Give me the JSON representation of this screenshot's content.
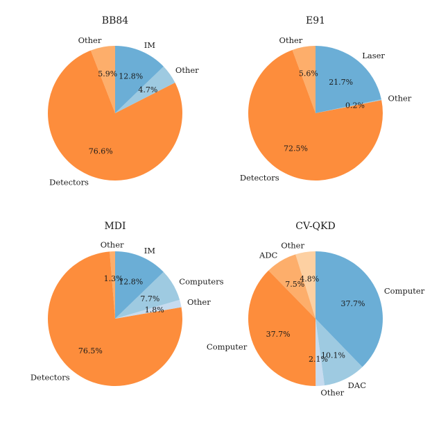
{
  "chart_data": [
    {
      "type": "pie",
      "title": "BB84",
      "slices": [
        {
          "label": "Other",
          "value": 5.9,
          "pct_text": "5.9%",
          "color": "#fdae6b"
        },
        {
          "label": "Detectors",
          "value": 76.6,
          "pct_text": "76.6%",
          "color": "#fd8d3c"
        },
        {
          "label": "Other",
          "value": 4.7,
          "pct_text": "4.7%",
          "color": "#9ecae1"
        },
        {
          "label": "IM",
          "value": 12.8,
          "pct_text": "12.8%",
          "color": "#6baed6"
        }
      ]
    },
    {
      "type": "pie",
      "title": "E91",
      "slices": [
        {
          "label": "Other",
          "value": 5.6,
          "pct_text": "5.6%",
          "color": "#fdae6b"
        },
        {
          "label": "Detectors",
          "value": 72.5,
          "pct_text": "72.5%",
          "color": "#fd8d3c"
        },
        {
          "label": "Other",
          "value": 0.2,
          "pct_text": "0.2%",
          "color": "#9ecae1"
        },
        {
          "label": "Laser",
          "value": 21.7,
          "pct_text": "21.7%",
          "color": "#6baed6"
        }
      ]
    },
    {
      "type": "pie",
      "title": "MDI",
      "slices": [
        {
          "label": "Other",
          "value": 1.3,
          "pct_text": "1.3%",
          "color": "#fdae6b"
        },
        {
          "label": "Detectors",
          "value": 76.5,
          "pct_text": "76.5%",
          "color": "#fd8d3c"
        },
        {
          "label": "Other",
          "value": 1.8,
          "pct_text": "1.8%",
          "color": "#c6dbef"
        },
        {
          "label": "Computers",
          "value": 7.7,
          "pct_text": "7.7%",
          "color": "#9ecae1"
        },
        {
          "label": "IM",
          "value": 12.8,
          "pct_text": "12.8%",
          "color": "#6baed6"
        }
      ]
    },
    {
      "type": "pie",
      "title": "CV-QKD",
      "slices": [
        {
          "label": "Other",
          "value": 4.8,
          "pct_text": "4.8%",
          "color": "#fdd0a2"
        },
        {
          "label": "ADC",
          "value": 7.5,
          "pct_text": "7.5%",
          "color": "#fdae6b"
        },
        {
          "label": "Computer",
          "value": 37.7,
          "pct_text": "37.7%",
          "color": "#fd8d3c"
        },
        {
          "label": "Other",
          "value": 2.1,
          "pct_text": "2.1%",
          "color": "#c6dbef"
        },
        {
          "label": "DAC",
          "value": 10.1,
          "pct_text": "10.1%",
          "color": "#9ecae1"
        },
        {
          "label": "Computer",
          "value": 37.7,
          "pct_text": "37.7%",
          "color": "#6baed6"
        }
      ]
    }
  ]
}
